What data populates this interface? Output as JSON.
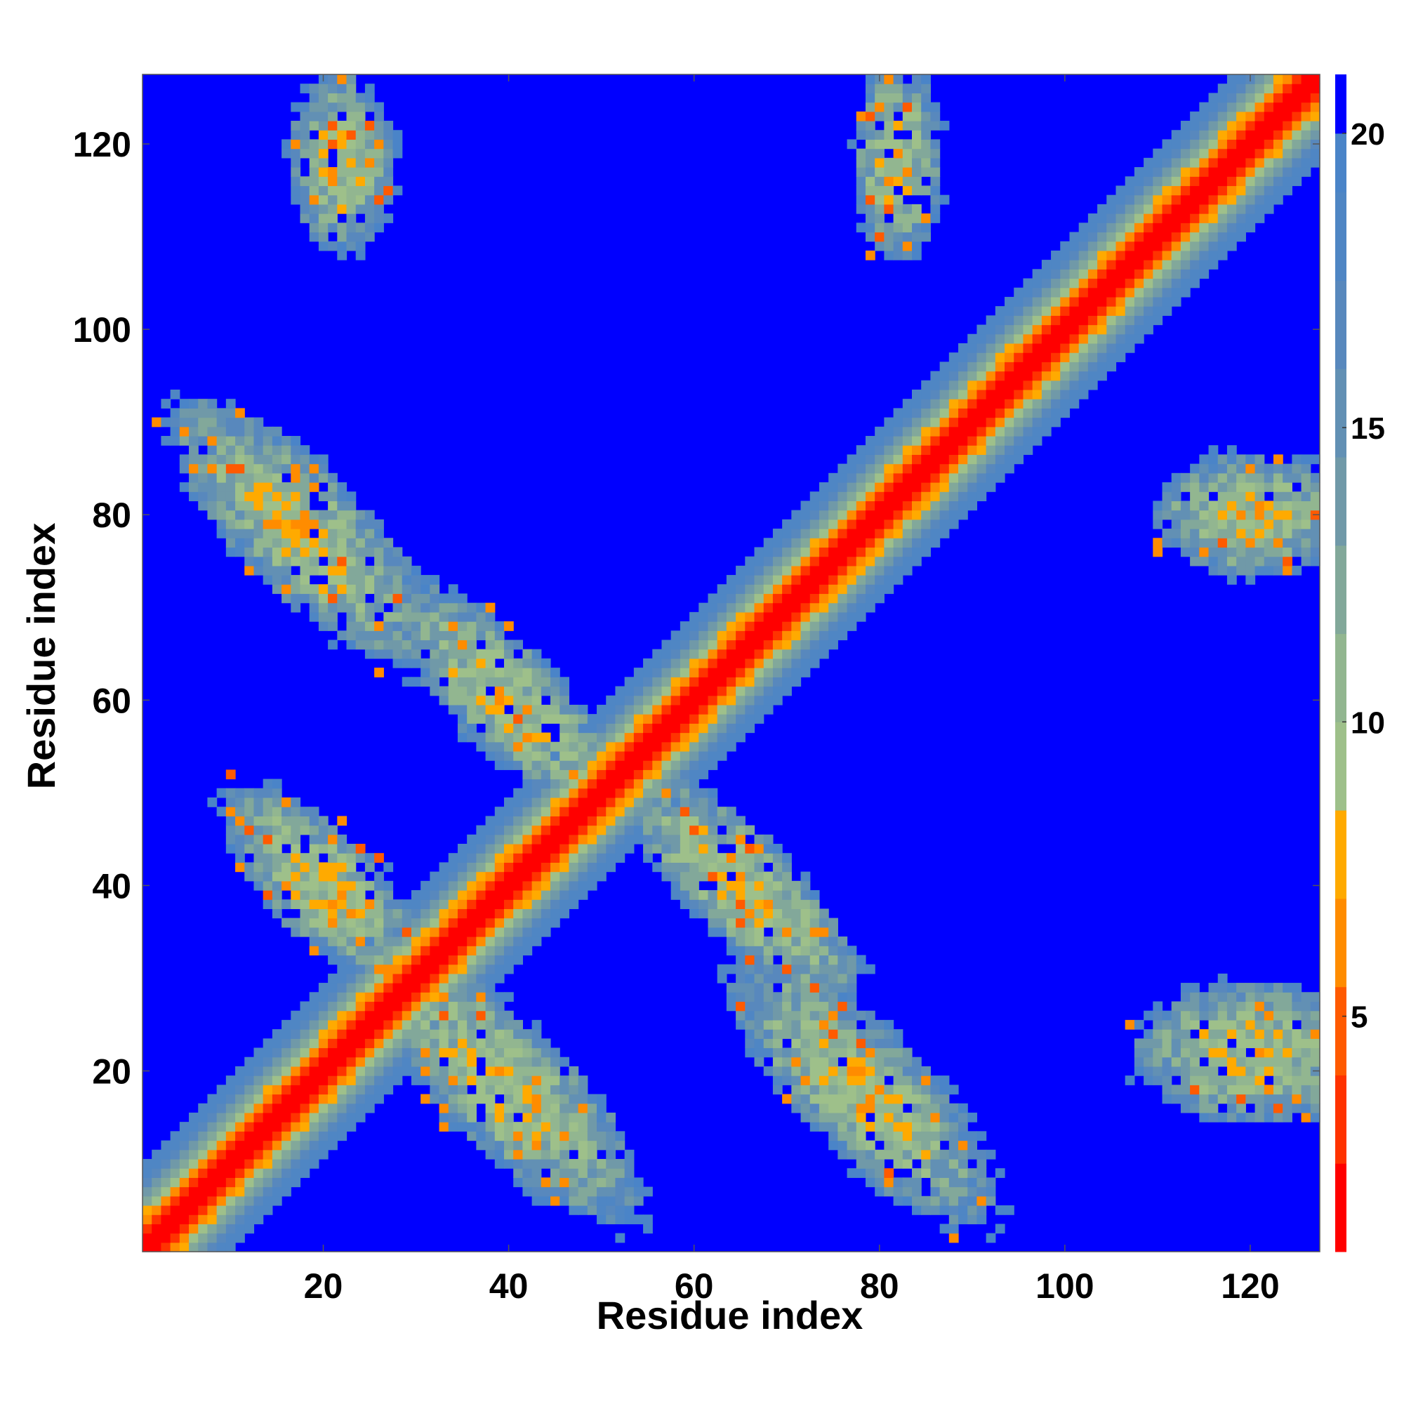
{
  "chart_data": {
    "type": "heatmap",
    "title": "",
    "xlabel": "Residue index",
    "ylabel": "Residue index",
    "n": 127,
    "xlim": [
      1,
      127
    ],
    "ylim": [
      1,
      127
    ],
    "x_ticks": [
      20,
      40,
      60,
      80,
      100,
      120
    ],
    "y_ticks": [
      20,
      40,
      60,
      80,
      100,
      120
    ],
    "x_tick_labels": [
      "20",
      "40",
      "60",
      "80",
      "100",
      "120"
    ],
    "y_tick_labels": [
      "20",
      "40",
      "60",
      "80",
      "100",
      "120"
    ],
    "colorbar": {
      "ticks": [
        5,
        10,
        15,
        20
      ],
      "tick_labels": [
        "5",
        "10",
        "15",
        "20"
      ],
      "range": [
        1,
        21
      ],
      "stops": [
        {
          "max": 2.5,
          "color": "#ff0000"
        },
        {
          "max": 4.0,
          "color": "#ff3300"
        },
        {
          "max": 5.5,
          "color": "#ff5a00"
        },
        {
          "max": 7.0,
          "color": "#ff8c00"
        },
        {
          "max": 8.5,
          "color": "#ffaa00"
        },
        {
          "max": 10.0,
          "color": "#9ec08a"
        },
        {
          "max": 11.5,
          "color": "#92b690"
        },
        {
          "max": 13.0,
          "color": "#82a89a"
        },
        {
          "max": 14.5,
          "color": "#7099a8"
        },
        {
          "max": 16.0,
          "color": "#6290b4"
        },
        {
          "max": 17.5,
          "color": "#5888bd"
        },
        {
          "max": 19.0,
          "color": "#4f86c4"
        },
        {
          "max": 20.0,
          "color": "#4a84c8"
        },
        {
          "max": 99,
          "color": "#0000ff"
        }
      ]
    },
    "description_of_values": "Pairwise residue distance map; diagonal band ~0-8, off-diagonal contact regions ~8-20, background saturated at >20",
    "diagonal_band": {
      "core_halfwidth": 1.5,
      "edge_halfwidth": 8
    },
    "contact_regions": [
      {
        "x_center": 40,
        "y_center": 60,
        "orientation": "anti",
        "length": 36,
        "width": 12
      },
      {
        "x_center": 18,
        "y_center": 78,
        "orientation": "anti",
        "length": 40,
        "width": 14
      },
      {
        "x_center": 40,
        "y_center": 18,
        "orientation": "anti",
        "length": 40,
        "width": 14
      },
      {
        "x_center": 65,
        "y_center": 40,
        "orientation": "anti",
        "length": 36,
        "width": 12
      },
      {
        "x_center": 78,
        "y_center": 18,
        "orientation": "anti",
        "length": 40,
        "width": 14
      },
      {
        "x_center": 20,
        "y_center": 40,
        "orientation": "anti",
        "length": 30,
        "width": 12
      },
      {
        "x_center": 22,
        "y_center": 118,
        "orientation": "blob",
        "length": 20,
        "width": 12
      },
      {
        "x_center": 82,
        "y_center": 118,
        "orientation": "blob",
        "length": 22,
        "width": 10
      },
      {
        "x_center": 120,
        "y_center": 80,
        "orientation": "blob",
        "length": 14,
        "width": 22
      },
      {
        "x_center": 120,
        "y_center": 22,
        "orientation": "blob",
        "length": 16,
        "width": 26
      }
    ]
  }
}
